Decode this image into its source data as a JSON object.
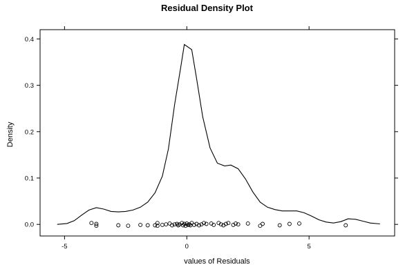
{
  "chart_data": {
    "type": "line",
    "title": "Residual Density Plot",
    "xlabel": "values of Residuals",
    "ylabel": "Density",
    "xlim": [
      -6,
      8.5
    ],
    "ylim": [
      -0.025,
      0.42
    ],
    "x_ticks": [
      {
        "value": -5,
        "label": "-5"
      },
      {
        "value": 0,
        "label": "0"
      },
      {
        "value": 5,
        "label": "5"
      }
    ],
    "y_ticks": [
      {
        "value": 0.0,
        "label": "0.0"
      },
      {
        "value": 0.1,
        "label": "0.1"
      },
      {
        "value": 0.2,
        "label": "0.2"
      },
      {
        "value": 0.3,
        "label": "0.3"
      },
      {
        "value": 0.4,
        "label": "0.4"
      }
    ],
    "grid": false,
    "series": [
      {
        "kind": "line",
        "x": [
          -5.3,
          -4.9,
          -4.6,
          -4.3,
          -4.0,
          -3.7,
          -3.4,
          -3.1,
          -2.8,
          -2.5,
          -2.2,
          -1.9,
          -1.6,
          -1.3,
          -1.0,
          -0.75,
          -0.5,
          -0.25,
          -0.1,
          0.2,
          0.4,
          0.65,
          0.95,
          1.25,
          1.55,
          1.8,
          2.1,
          2.4,
          2.7,
          3.0,
          3.3,
          3.6,
          3.9,
          4.2,
          4.5,
          4.8,
          5.1,
          5.4,
          5.7,
          6.0,
          6.3,
          6.6,
          6.9,
          7.2,
          7.5,
          7.9
        ],
        "y": [
          0.0,
          0.002,
          0.008,
          0.02,
          0.031,
          0.036,
          0.033,
          0.028,
          0.027,
          0.028,
          0.031,
          0.037,
          0.048,
          0.068,
          0.104,
          0.163,
          0.258,
          0.338,
          0.388,
          0.377,
          0.315,
          0.232,
          0.165,
          0.132,
          0.126,
          0.128,
          0.12,
          0.098,
          0.07,
          0.048,
          0.037,
          0.032,
          0.029,
          0.029,
          0.029,
          0.025,
          0.018,
          0.01,
          0.005,
          0.003,
          0.006,
          0.012,
          0.011,
          0.007,
          0.003,
          0.001
        ],
        "color": "#000000"
      },
      {
        "kind": "points",
        "x": [
          -3.9,
          -3.7,
          -3.7,
          -2.8,
          -2.4,
          -1.9,
          -1.6,
          -1.3,
          -1.2,
          -1.2,
          -1.0,
          -0.85,
          -0.7,
          -0.6,
          -0.5,
          -0.4,
          -0.35,
          -0.3,
          -0.2,
          -0.15,
          -0.1,
          -0.05,
          0.0,
          0.05,
          0.1,
          0.15,
          0.2,
          0.3,
          0.4,
          0.5,
          0.6,
          0.7,
          0.8,
          1.0,
          1.1,
          1.3,
          1.4,
          1.5,
          1.6,
          1.7,
          1.9,
          2.0,
          2.1,
          2.5,
          3.0,
          3.1,
          3.8,
          4.2,
          4.6,
          6.5
        ],
        "y": [
          0.003,
          0.001,
          -0.003,
          -0.002,
          -0.003,
          -0.001,
          -0.002,
          -0.002,
          0.003,
          -0.003,
          -0.001,
          0.0,
          0.002,
          -0.002,
          0.0,
          0.001,
          -0.002,
          0.0,
          0.003,
          -0.002,
          0.001,
          -0.003,
          0.002,
          -0.001,
          0.0,
          -0.002,
          0.003,
          -0.001,
          0.001,
          -0.002,
          0.0,
          0.003,
          0.001,
          0.002,
          -0.001,
          0.003,
          0.0,
          -0.002,
          0.001,
          0.003,
          -0.001,
          0.002,
          0.0,
          0.002,
          -0.003,
          0.001,
          -0.002,
          0.001,
          0.002,
          -0.002
        ],
        "color": "#000000"
      }
    ]
  }
}
